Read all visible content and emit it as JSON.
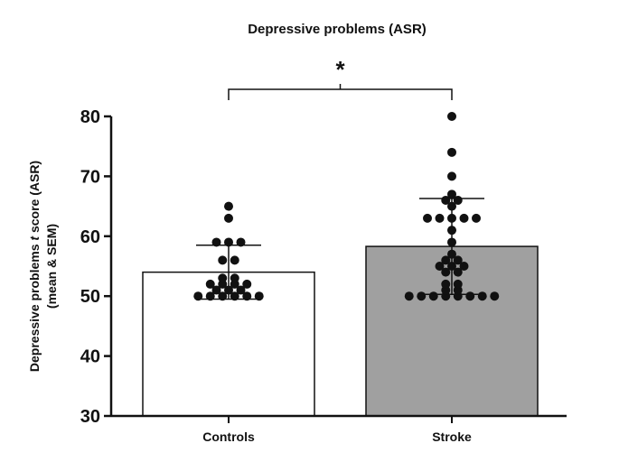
{
  "chart_data": {
    "type": "bar",
    "title": "Depressive problems (ASR)",
    "ylabel_line1_pre": "Depressive problems ",
    "ylabel_line1_italic": "t",
    "ylabel_line1_post": " score (ASR)",
    "ylabel_line2": "(mean & SEM)",
    "ylim": [
      30,
      80
    ],
    "yticks": [
      30,
      40,
      50,
      60,
      70,
      80
    ],
    "categories": [
      "Controls",
      "Stroke"
    ],
    "values": [
      54,
      58.3
    ],
    "error_low": [
      49.5,
      50.3
    ],
    "error_high": [
      58.5,
      66.3
    ],
    "bar_colors": [
      "#ffffff",
      "#a0a0a0"
    ],
    "significance": "*",
    "points": [
      [
        52,
        52,
        51,
        51,
        50,
        50,
        50,
        50,
        50,
        50,
        51,
        52,
        52,
        53,
        53,
        56,
        56,
        59,
        59,
        59,
        63,
        65
      ],
      [
        52,
        50,
        50,
        50,
        50,
        50,
        50,
        50,
        50,
        51,
        51,
        52,
        54,
        54,
        55,
        55,
        55,
        56,
        56,
        57,
        59,
        61,
        63,
        63,
        63,
        63,
        63,
        65,
        66,
        66,
        67,
        70,
        74,
        80
      ]
    ]
  }
}
